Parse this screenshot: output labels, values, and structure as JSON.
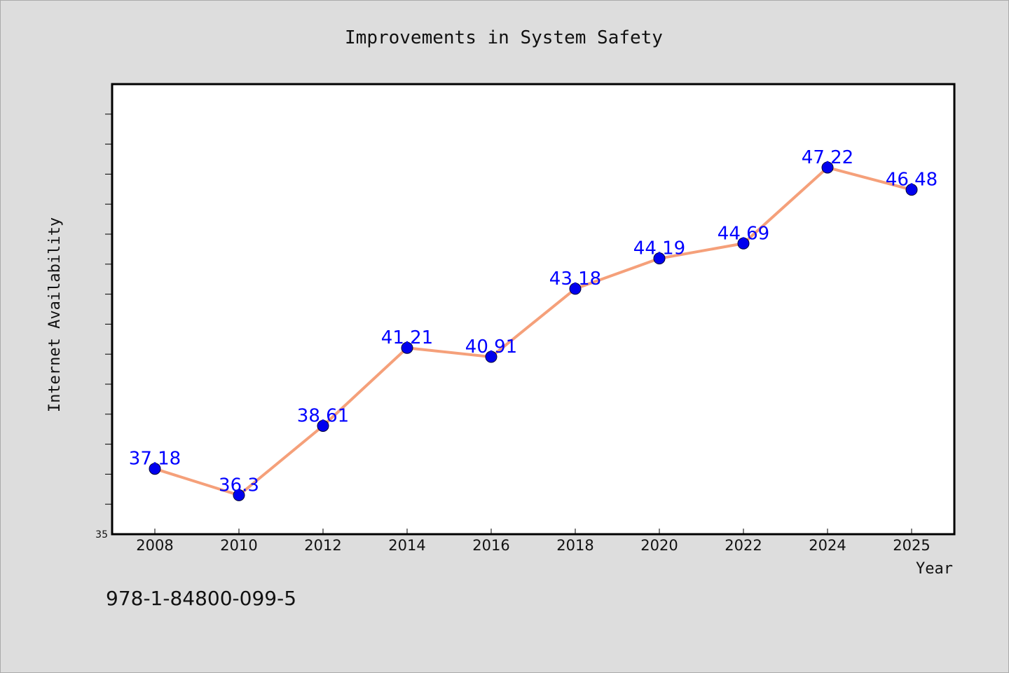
{
  "chart_data": {
    "type": "line",
    "title": "Improvements in System Safety",
    "xlabel": "Year",
    "ylabel": "Internet Availability",
    "categories": [
      "2008",
      "2010",
      "2012",
      "2014",
      "2016",
      "2018",
      "2020",
      "2022",
      "2024",
      "2025"
    ],
    "series": [
      {
        "values": [
          37.18,
          36.3,
          38.61,
          41.21,
          40.91,
          43.18,
          44.19,
          44.69,
          47.22,
          46.48
        ],
        "data_labels": [
          "37.18",
          "36.3",
          "38.61",
          "41.21",
          "40.91",
          "43.18",
          "44.19",
          "44.69",
          "47.22",
          "46.48"
        ]
      }
    ],
    "ylim": [
      35,
      50
    ],
    "ytick_labels": [
      "35"
    ],
    "grid": false,
    "legend": "none",
    "colors": {
      "line": "#f5a07a",
      "marker": "#0000ee",
      "data_label": "#0000ff",
      "plot_bg": "#ffffff",
      "figure_bg": "#dddddd"
    }
  },
  "footer": {
    "isbn": "978-1-84800-099-5"
  }
}
